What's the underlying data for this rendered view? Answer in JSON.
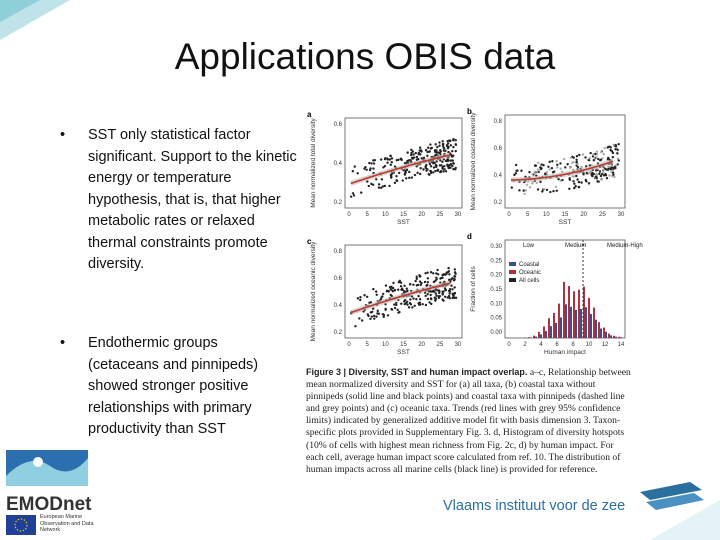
{
  "title": "Applications OBIS data",
  "bullets": [
    "SST only statistical factor significant. Support to the kinetic energy or temperature hypothesis, that is, that higher metabolic rates or relaxed thermal constraints promote diversity.",
    "Endothermic groups (cetaceans and pinnipeds) showed stronger positive relationships with primary productivity than SST"
  ],
  "figure": {
    "panels": [
      {
        "letter": "a",
        "ylabel": "Mean normalized total diversity",
        "xlabel": "SST",
        "yticks": [
          "0.6",
          "0.4",
          "0.2"
        ],
        "xticks": [
          "0",
          "5",
          "10",
          "15",
          "20",
          "25",
          "30"
        ]
      },
      {
        "letter": "b",
        "ylabel": "Mean normalized coastal diversity",
        "xlabel": "SST",
        "yticks": [
          "0.8",
          "0.6",
          "0.4",
          "0.2"
        ],
        "xticks": [
          "0",
          "5",
          "10",
          "15",
          "20",
          "25",
          "30"
        ]
      },
      {
        "letter": "c",
        "ylabel": "Mean normalized oceanic diversity",
        "xlabel": "SST",
        "yticks": [
          "0.8",
          "0.6",
          "0.4",
          "0.2"
        ],
        "xticks": [
          "0",
          "5",
          "10",
          "15",
          "20",
          "25",
          "30"
        ]
      },
      {
        "letter": "d",
        "ylabel": "Fraction of cells",
        "xlabel": "Human impact",
        "yticks": [
          "0.30",
          "0.25",
          "0.20",
          "0.15",
          "0.10",
          "0.05",
          "0.00"
        ],
        "xticks": [
          "0",
          "2",
          "4",
          "6",
          "8",
          "10",
          "12",
          "14"
        ],
        "zones": [
          "Low",
          "Medium",
          "Medium-High"
        ],
        "legend": [
          "Coastal",
          "Oceanic",
          "All cells"
        ]
      }
    ],
    "caption_head": "Figure 3 | Diversity, SST and human impact overlap.",
    "caption_body": "a–c, Relationship between mean normalized diversity and SST for (a) all taxa, (b) coastal taxa without pinnipeds (solid line and black points) and coastal taxa with pinnipeds (dashed line and grey points) and (c) oceanic taxa. Trends (red lines with grey 95% confidence limits) indicated by generalized additive model fit with basis dimension 3. Taxon-specific plots provided in Supplementary Fig. 3. d, Histogram of diversity hotspots (10% of cells with highest mean richness from Fig. 2c, d) by human impact. For each cell, average human impact score calculated from ref. 10. The distribution of human impacts across all marine cells (black line) is provided for reference."
  },
  "logos": {
    "emodnet": "EMODnet",
    "eu": "European Marine Observation and Data Network",
    "vliz": "Vlaams instituut voor de zee"
  }
}
